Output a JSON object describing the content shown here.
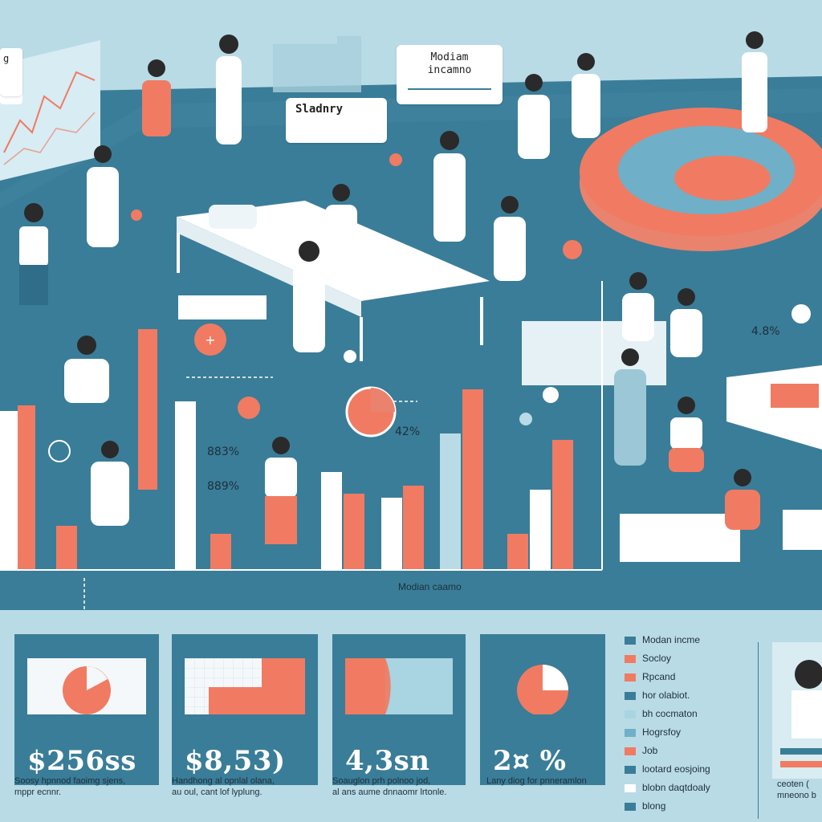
{
  "callouts": {
    "median_income": "Modiam\nincamno",
    "salary": "Sladnry",
    "corner_tag": "g"
  },
  "chart_labels": {
    "pct_1": "883%",
    "pct_2": "889%",
    "pct_3": "42%",
    "pct_4": "4.8%",
    "x_caption": "Modian caamo"
  },
  "cards": [
    {
      "value": "$256ss",
      "caption": "Soosy hpnnod faoimg sjens,\nmppr ecnnr."
    },
    {
      "value": "$8,53)",
      "caption": "Handhong al opnlal olana,\nau oul, cant lof lyplung."
    },
    {
      "value": "4,3sn",
      "caption": "Soauglon prh polnoo jod,\nal ans aume dnnaomr lrtonle."
    },
    {
      "value": "2¤ %",
      "caption": "Lany diog for pnneramlon"
    }
  ],
  "legend": [
    {
      "label": "Modan incme",
      "color": "#3a7d98"
    },
    {
      "label": "Socloy",
      "color": "#f07b62"
    },
    {
      "label": "Rpcand",
      "color": "#f07b62"
    },
    {
      "label": "hor olabiot.",
      "color": "#3a7d98"
    },
    {
      "label": "bh cocmaton",
      "color": "#a9d4e2"
    },
    {
      "label": "Hogrsfoy",
      "color": "#6fb0c8"
    },
    {
      "label": "Job",
      "color": "#f07b62"
    },
    {
      "label": "lootard eosjoing",
      "color": "#3a7d98"
    },
    {
      "label": "blobn daqtdoaly",
      "color": "#ffffff"
    },
    {
      "label": "blong",
      "color": "#3a7d98"
    }
  ],
  "portrait_caption": "ceoten (\nmneono b",
  "colors": {
    "teal": "#3a7d98",
    "coral": "#f07b62",
    "light": "#b9dbe6",
    "white": "#ffffff"
  }
}
